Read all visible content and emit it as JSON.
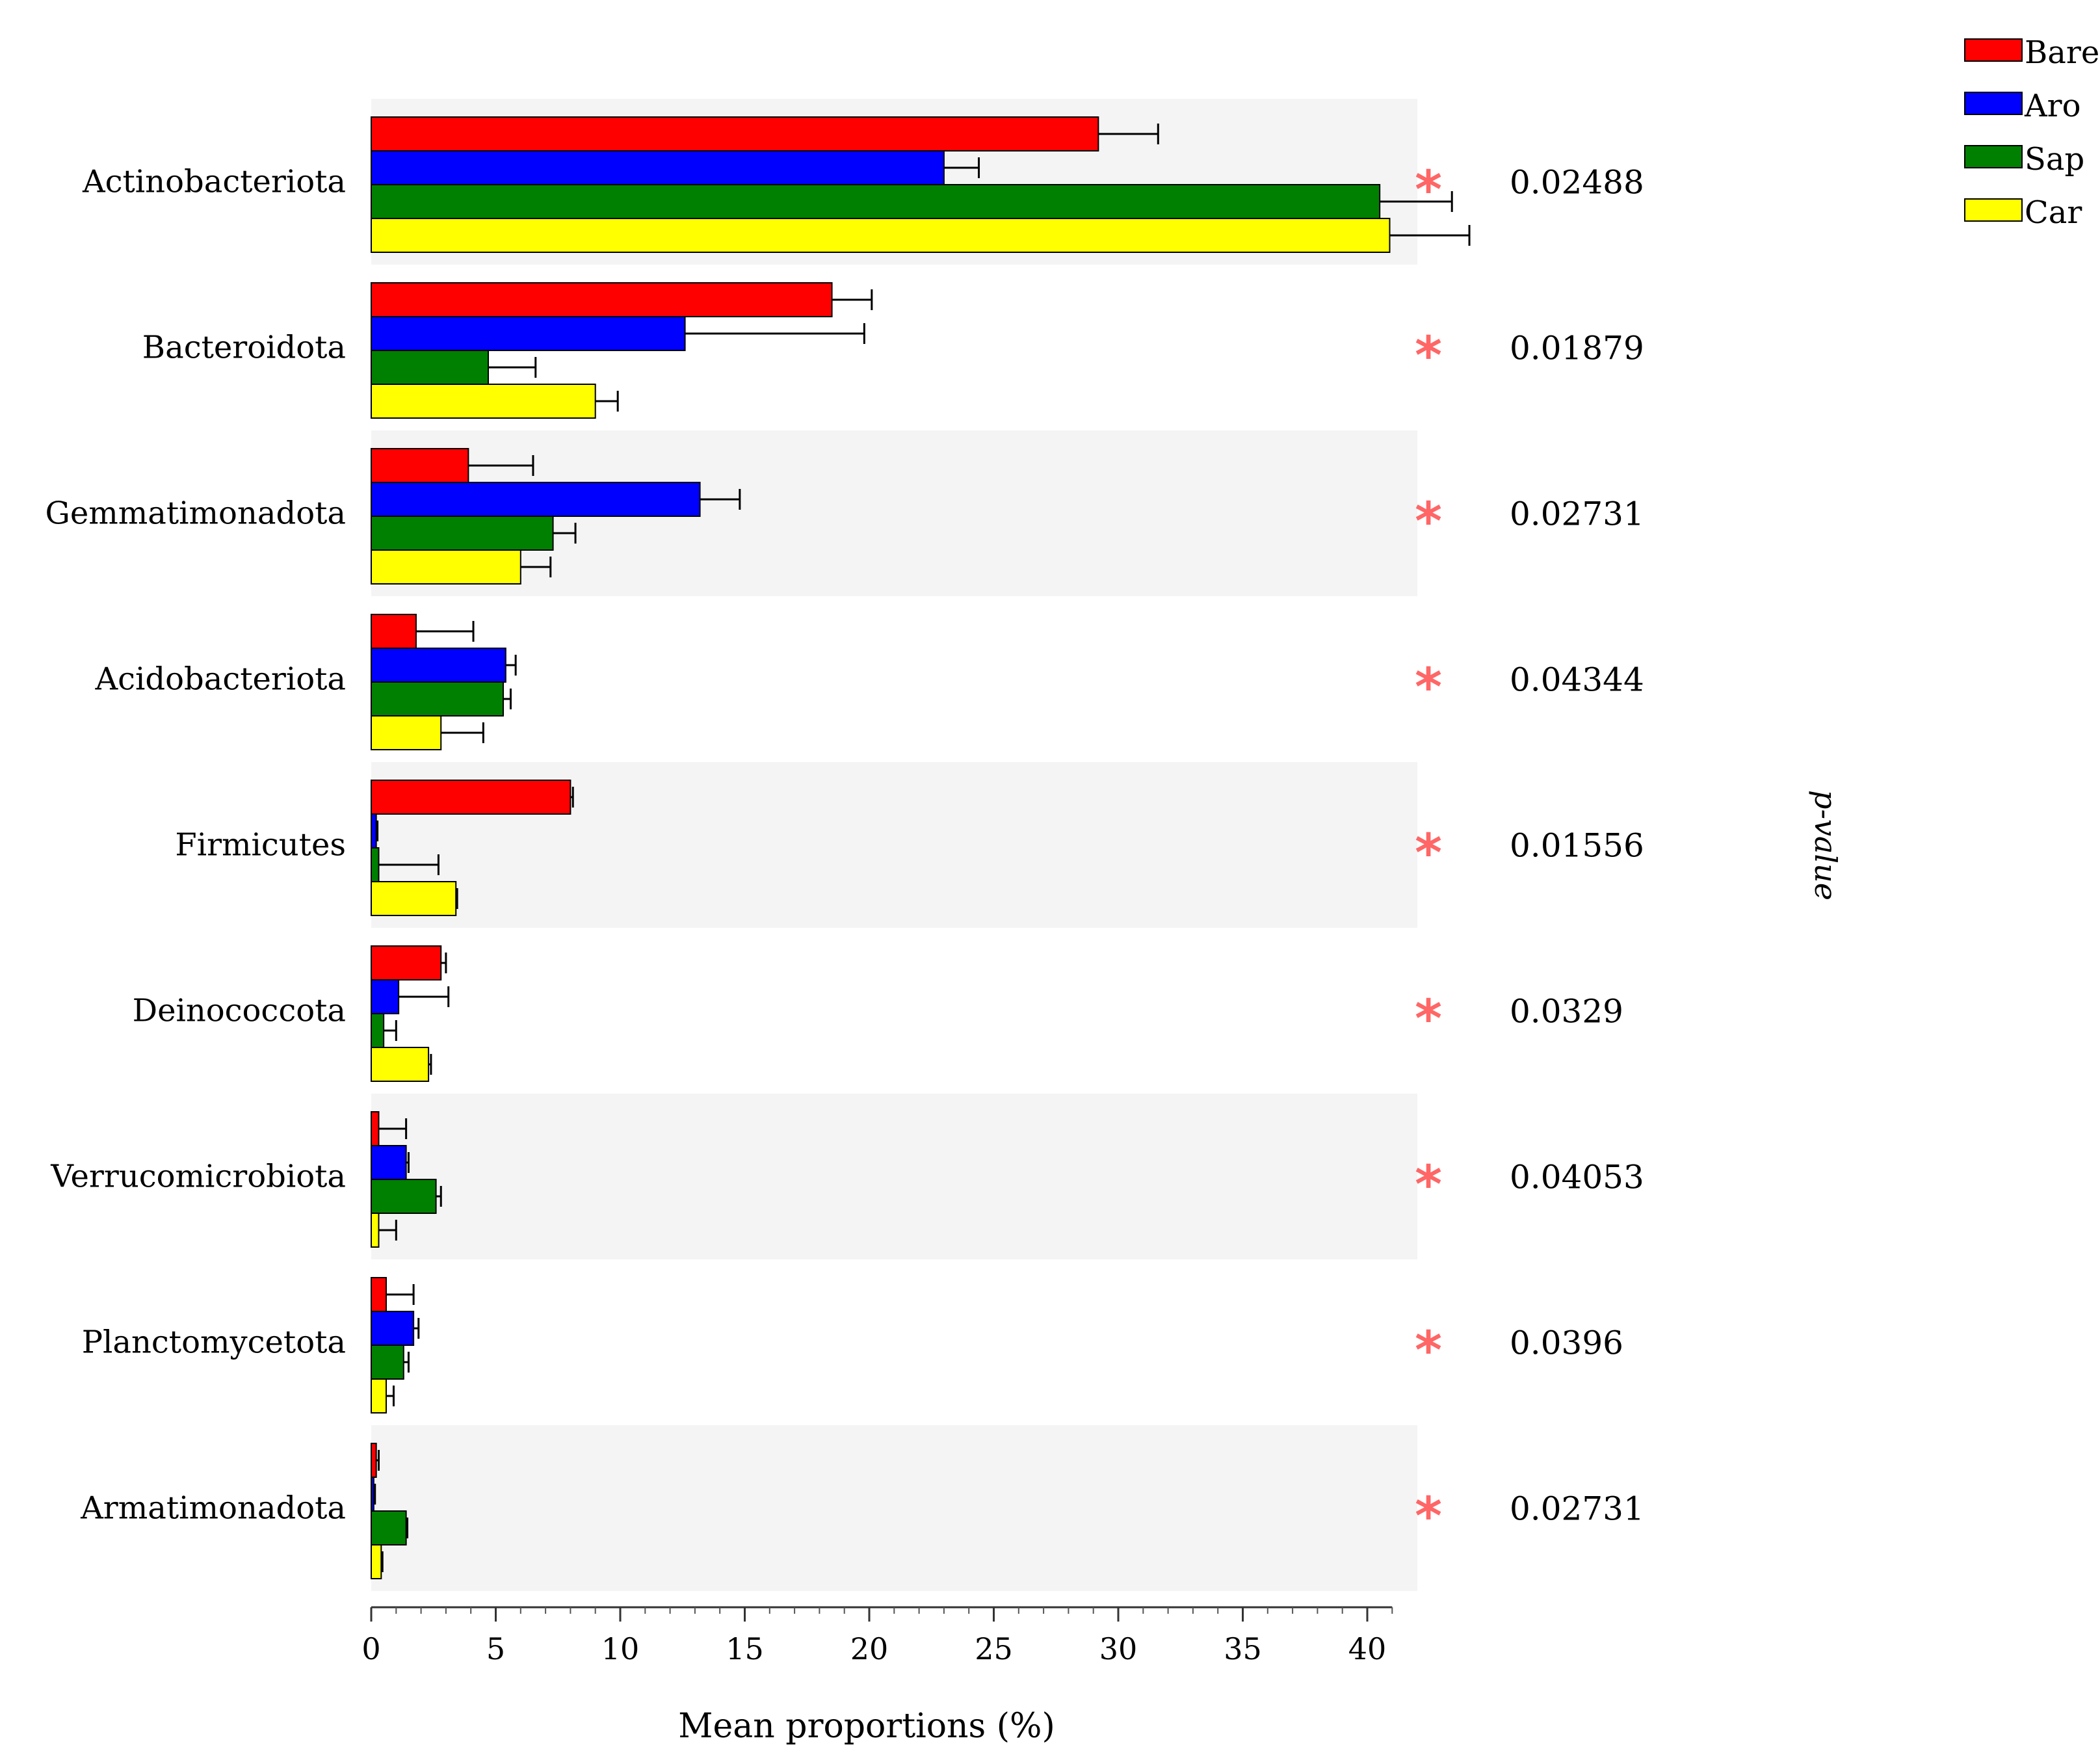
{
  "chart_data": {
    "type": "bar",
    "orientation": "horizontal",
    "xlabel": "Mean proportions (%)",
    "pvalue_label": "p-value",
    "xlim": [
      0,
      41
    ],
    "xticks": [
      0,
      5,
      10,
      15,
      20,
      25,
      30,
      35,
      40
    ],
    "grid": false,
    "legend_position": "top-right",
    "categories": [
      "Actinobacteriota",
      "Bacteroidota",
      "Gemmatimonadota",
      "Acidobacteriota",
      "Firmicutes",
      "Deinococcota",
      "Verrucomicrobiota",
      "Planctomycetota",
      "Armatimonadota"
    ],
    "series": [
      {
        "name": "Bare",
        "color": "#ff0000",
        "values": [
          29.2,
          18.5,
          3.9,
          1.8,
          8.0,
          2.8,
          0.3,
          0.6,
          0.2
        ],
        "errors": [
          2.4,
          1.6,
          2.6,
          2.3,
          0.1,
          0.2,
          1.1,
          1.1,
          0.1
        ]
      },
      {
        "name": "Aro",
        "color": "#0000ff",
        "values": [
          23.0,
          12.6,
          13.2,
          5.4,
          0.2,
          1.1,
          1.4,
          1.7,
          0.1
        ],
        "errors": [
          1.4,
          7.2,
          1.6,
          0.4,
          0.05,
          2.0,
          0.1,
          0.2,
          0.05
        ]
      },
      {
        "name": "Sap",
        "color": "#008000",
        "values": [
          40.5,
          4.7,
          7.3,
          5.3,
          0.3,
          0.5,
          2.6,
          1.3,
          1.4
        ],
        "errors": [
          2.9,
          1.9,
          0.9,
          0.3,
          2.4,
          0.5,
          0.2,
          0.2,
          0.05
        ]
      },
      {
        "name": "Car",
        "color": "#ffff00",
        "values": [
          40.9,
          9.0,
          6.0,
          2.8,
          3.4,
          2.3,
          0.3,
          0.6,
          0.4
        ],
        "errors": [
          3.2,
          0.9,
          1.2,
          1.7,
          0.05,
          0.1,
          0.7,
          0.3,
          0.05
        ]
      }
    ],
    "significance": [
      "*",
      "*",
      "*",
      "*",
      "*",
      "*",
      "*",
      "*",
      "*"
    ],
    "significance_color": "#ff6666",
    "pvalues": [
      "0.02488",
      "0.01879",
      "0.02731",
      "0.04344",
      "0.01556",
      "0.0329",
      "0.04053",
      "0.0396",
      "0.02731"
    ],
    "band_color": "#f4f4f4"
  }
}
